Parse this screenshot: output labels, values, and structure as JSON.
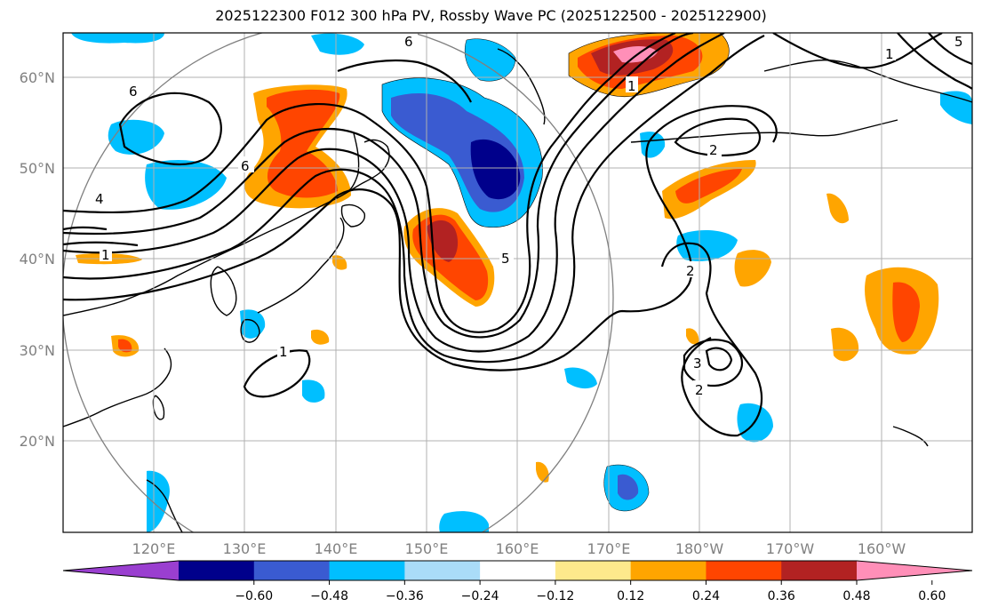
{
  "title": "2025122300 F012 300 hPa PV, Rossby Wave PC (2025122500 - 2025122900)",
  "map": {
    "lon_labels": [
      "120°E",
      "130°E",
      "140°E",
      "150°E",
      "160°E",
      "170°E",
      "180°W",
      "170°W",
      "160°W"
    ],
    "lat_labels": [
      "60°N",
      "50°N",
      "40°N",
      "30°N",
      "20°N"
    ],
    "contour_labels": [
      "6",
      "6",
      "6",
      "4",
      "1",
      "1",
      "2",
      "2",
      "2",
      "1",
      "5",
      "5",
      "3",
      "1"
    ]
  },
  "colorbar": {
    "ticks": [
      "−0.60",
      "−0.48",
      "−0.36",
      "−0.24",
      "−0.12",
      "0.12",
      "0.24",
      "0.36",
      "0.48",
      "0.60"
    ],
    "colors": [
      "#9a3fd0",
      "#00008b",
      "#3a5bd1",
      "#00bfff",
      "#aadcf8",
      "#ffffff",
      "#fde98c",
      "#ffa500",
      "#ff4500",
      "#b22222",
      "#ff8fb8"
    ]
  }
}
